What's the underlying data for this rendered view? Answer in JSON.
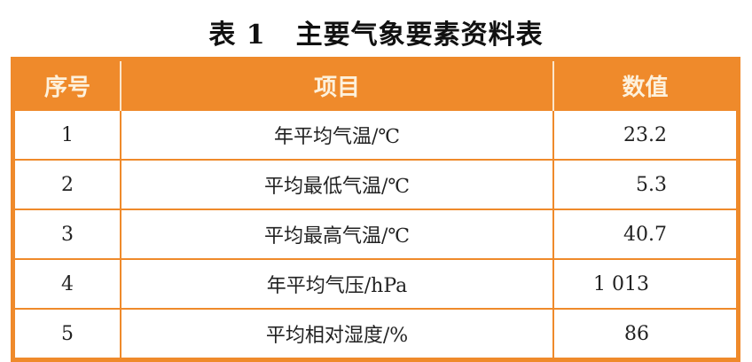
{
  "title": {
    "number": "表 1",
    "text": "主要气象要素资料表"
  },
  "table": {
    "headers": [
      "序号",
      "项目",
      "数值"
    ],
    "rows": [
      {
        "no": "1",
        "item": "年平均气温/℃",
        "value": "23.2"
      },
      {
        "no": "2",
        "item": "平均最低气温/℃",
        "value": "5.3"
      },
      {
        "no": "3",
        "item": "平均最高气温/℃",
        "value": "40.7"
      },
      {
        "no": "4",
        "item": "年平均气压/hPa",
        "value": "1 013"
      },
      {
        "no": "5",
        "item": "平均相对湿度/%",
        "value": "86"
      }
    ]
  },
  "colors": {
    "header_bg": "#ef8a2b",
    "header_text": "#fdf1dc"
  }
}
